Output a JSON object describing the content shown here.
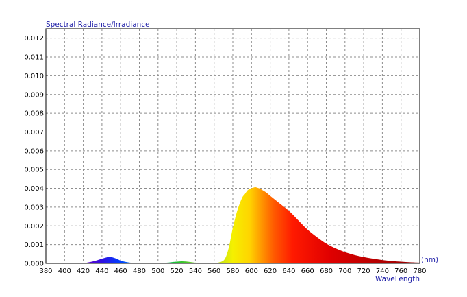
{
  "chart_data": {
    "type": "area",
    "title": "Spectral Radiance/Irradiance",
    "xlabel": "WaveLength",
    "xunit": "(nm)",
    "xlim": [
      380,
      780
    ],
    "ylim": [
      0,
      0.0125
    ],
    "grid": true,
    "xticks": [
      "380",
      "400",
      "420",
      "440",
      "460",
      "480",
      "500",
      "520",
      "540",
      "560",
      "580",
      "600",
      "620",
      "640",
      "660",
      "680",
      "700",
      "720",
      "740",
      "760",
      "780"
    ],
    "yticks": [
      "0.000",
      "0.001",
      "0.002",
      "0.003",
      "0.004",
      "0.005",
      "0.006",
      "0.007",
      "0.008",
      "0.009",
      "0.010",
      "0.011",
      "0.012"
    ],
    "series": [
      {
        "x": [
          380,
          400,
          410,
          420,
          425,
          430,
          435,
          440,
          445,
          448,
          450,
          455,
          460,
          465,
          470,
          475,
          480,
          490,
          500,
          510,
          515,
          520,
          525,
          530,
          535,
          540,
          550,
          560,
          565,
          570,
          573,
          576,
          578,
          580,
          583,
          586,
          590,
          593,
          596,
          600,
          603,
          605,
          608,
          610,
          615,
          620,
          625,
          630,
          640,
          650,
          660,
          670,
          680,
          690,
          700,
          710,
          720,
          730,
          740,
          750,
          760,
          770,
          780
        ],
        "y": [
          0,
          0,
          0,
          2e-05,
          5e-05,
          0.0001,
          0.00017,
          0.00025,
          0.00032,
          0.00035,
          0.00034,
          0.00026,
          0.00015,
          8e-05,
          4e-05,
          2e-05,
          1e-05,
          5e-06,
          1e-05,
          4e-05,
          7e-05,
          9e-05,
          0.00011,
          0.0001,
          7e-05,
          4e-05,
          2e-05,
          2e-05,
          5e-05,
          0.00015,
          0.0004,
          0.0009,
          0.0014,
          0.0019,
          0.0025,
          0.003,
          0.0035,
          0.0037,
          0.0039,
          0.004,
          0.00405,
          0.00405,
          0.004,
          0.00395,
          0.0038,
          0.0036,
          0.0034,
          0.0032,
          0.0028,
          0.0023,
          0.0018,
          0.0014,
          0.00105,
          0.0008,
          0.0006,
          0.00045,
          0.00034,
          0.00025,
          0.00018,
          0.00013,
          9e-05,
          6e-05,
          4e-05
        ]
      }
    ]
  }
}
